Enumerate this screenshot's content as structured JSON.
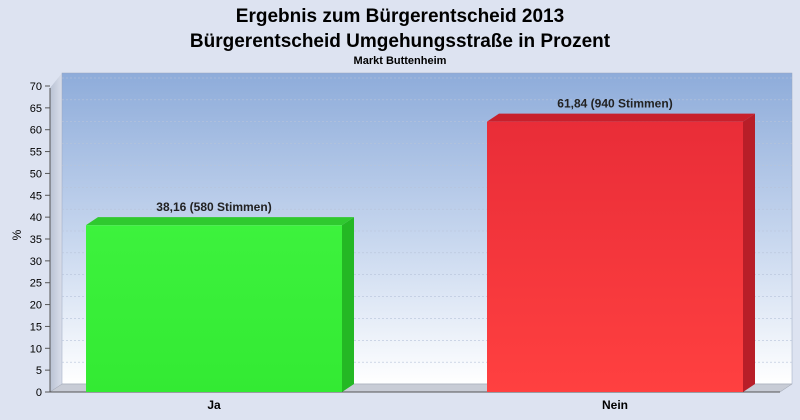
{
  "chart_data": {
    "type": "bar",
    "title_line1": "Ergebnis zum Bürgerentscheid 2013",
    "title_line2": "Bürgerentscheid Umgehungsstraße in Prozent",
    "subtitle": "Markt Buttenheim",
    "xlabel": "",
    "ylabel": "%",
    "ylim": [
      0,
      70
    ],
    "yticks": [
      0,
      5,
      10,
      15,
      20,
      25,
      30,
      35,
      40,
      45,
      50,
      55,
      60,
      65,
      70
    ],
    "grid": true,
    "categories": [
      "Ja",
      "Nein"
    ],
    "values": [
      38.16,
      61.84
    ],
    "data_labels": [
      "38,16 (580 Stimmen)",
      "61,84 (940 Stimmen)"
    ],
    "colors": [
      "#33ee33",
      "#ee3333"
    ]
  }
}
